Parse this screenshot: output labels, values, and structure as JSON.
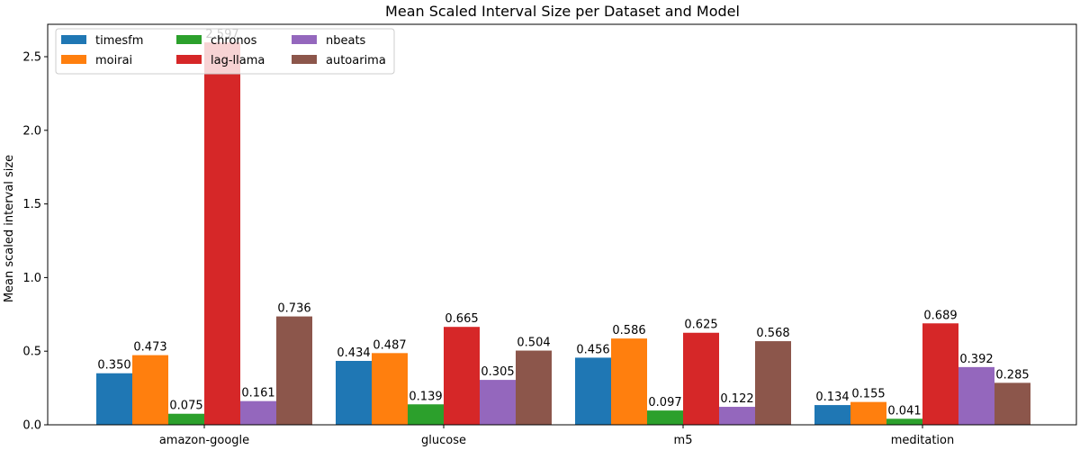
{
  "chart_data": {
    "type": "bar",
    "title": "Mean Scaled Interval Size per Dataset and Model",
    "xlabel": "",
    "ylabel": "Mean scaled interval size",
    "categories": [
      "amazon-google",
      "glucose",
      "m5",
      "meditation"
    ],
    "ylim": [
      0,
      2.72
    ],
    "yticks": [
      "0.0",
      "0.5",
      "1.0",
      "1.5",
      "2.0",
      "2.5"
    ],
    "grid": false,
    "legend_position": "top-left",
    "legend_columns": 3,
    "series": [
      {
        "name": "timesfm",
        "color": "#1f77b4",
        "values": [
          0.35,
          0.434,
          0.456,
          0.134
        ],
        "labels": [
          "0.350",
          "0.434",
          "0.456",
          "0.134"
        ]
      },
      {
        "name": "moirai",
        "color": "#ff7f0e",
        "values": [
          0.473,
          0.487,
          0.586,
          0.155
        ],
        "labels": [
          "0.473",
          "0.487",
          "0.586",
          "0.155"
        ]
      },
      {
        "name": "chronos",
        "color": "#2ca02c",
        "values": [
          0.075,
          0.139,
          0.097,
          0.041
        ],
        "labels": [
          "0.075",
          "0.139",
          "0.097",
          "0.041"
        ]
      },
      {
        "name": "lag-llama",
        "color": "#d62728",
        "values": [
          2.597,
          0.665,
          0.625,
          0.689
        ],
        "labels": [
          "2.597",
          "0.665",
          "0.625",
          "0.689"
        ]
      },
      {
        "name": "nbeats",
        "color": "#9467bd",
        "values": [
          0.161,
          0.305,
          0.122,
          0.392
        ],
        "labels": [
          "0.161",
          "0.305",
          "0.122",
          "0.392"
        ]
      },
      {
        "name": "autoarima",
        "color": "#8c564b",
        "values": [
          0.736,
          0.504,
          0.568,
          0.285
        ],
        "labels": [
          "0.736",
          "0.504",
          "0.568",
          "0.285"
        ]
      }
    ]
  }
}
